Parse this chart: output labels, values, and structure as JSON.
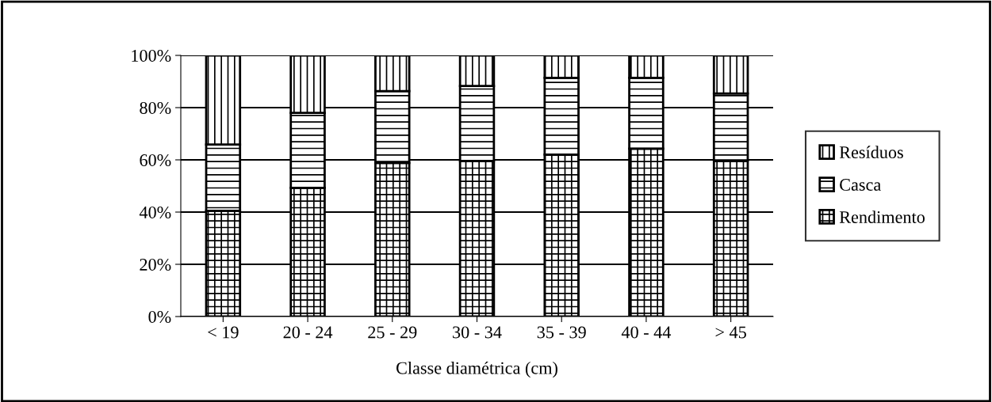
{
  "chart_data": {
    "type": "bar",
    "stacked": true,
    "xlabel": "Classe diamétrica (cm)",
    "categories": [
      "< 19",
      "20 - 24",
      "25 - 29",
      "30 - 34",
      "35 - 39",
      "40 - 44",
      "> 45"
    ],
    "series": [
      {
        "name": "Rendimento",
        "color": "#000000",
        "values": [
          40.5,
          49.3,
          58.8,
          59.6,
          62.0,
          64.3,
          59.8
        ]
      },
      {
        "name": "Casca",
        "color": "#000000",
        "values": [
          25.4,
          28.7,
          27.5,
          28.7,
          29.4,
          27.1,
          25.6
        ]
      },
      {
        "name": "Resíduos",
        "color": "#000000",
        "values": [
          34.1,
          22.0,
          13.7,
          11.7,
          8.6,
          8.6,
          14.6
        ]
      }
    ],
    "ylim": [
      0,
      100
    ],
    "yticks": [
      {
        "value": 0,
        "label": "0%"
      },
      {
        "value": 20,
        "label": "20%"
      },
      {
        "value": 40,
        "label": "40%"
      },
      {
        "value": 60,
        "label": "60%"
      },
      {
        "value": 80,
        "label": "80%"
      },
      {
        "value": 100,
        "label": "100%"
      }
    ],
    "grid": "y",
    "legend": "right"
  }
}
